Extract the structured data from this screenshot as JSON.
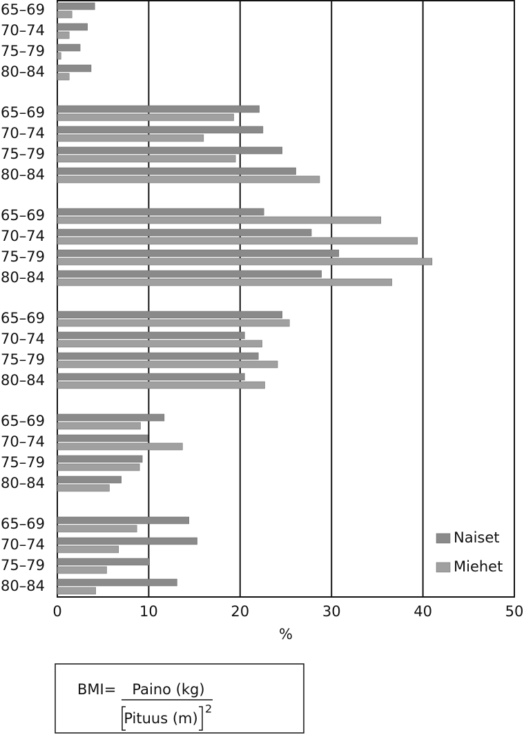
{
  "chart_data": {
    "type": "bar",
    "orientation": "horizontal",
    "categories": [
      "65–69",
      "70–74",
      "75–79",
      "80–84",
      "65–69",
      "70–74",
      "75–79",
      "80–84",
      "65–69",
      "70–74",
      "75–79",
      "80–84",
      "65–69",
      "70–74",
      "75–79",
      "80–84",
      "65–69",
      "70–74",
      "75–79",
      "80–84",
      "65–69",
      "70–74",
      "75–79",
      "80–84"
    ],
    "series": [
      {
        "name": "Naiset",
        "color": "#8a8a8a",
        "values": [
          4.1,
          3.3,
          2.5,
          3.7,
          22.1,
          22.5,
          24.6,
          26.1,
          22.6,
          27.8,
          30.8,
          28.9,
          24.6,
          20.5,
          22.0,
          20.5,
          11.7,
          9.9,
          9.3,
          7.0,
          14.4,
          15.3,
          10.1,
          13.1
        ]
      },
      {
        "name": "Miehet",
        "color": "#a0a0a0",
        "values": [
          1.6,
          1.3,
          0.4,
          1.3,
          19.3,
          16.0,
          19.5,
          28.7,
          35.4,
          39.4,
          41.0,
          36.6,
          25.4,
          22.4,
          24.1,
          22.7,
          9.1,
          13.7,
          9.0,
          5.7,
          8.7,
          6.7,
          5.4,
          4.2
        ]
      }
    ],
    "xlim": [
      0,
      50
    ],
    "xticks": [
      0,
      10,
      20,
      30,
      40,
      50
    ],
    "xlabel": "%",
    "grid": true,
    "legend": "lower right"
  },
  "formula": {
    "lhs": "BMI=",
    "numerator": "Paino (kg)",
    "denominator": "Pituus (m)",
    "exponent": "2"
  }
}
